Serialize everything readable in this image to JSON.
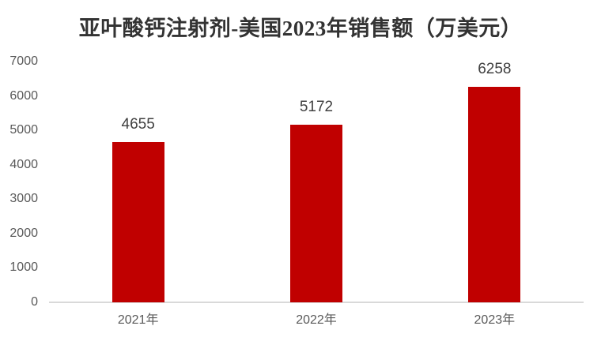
{
  "title": "亚叶酸钙注射剂-美国2023年销售额（万美元）",
  "colors": {
    "background": "#FFFFFF",
    "bar": "#C00000",
    "axis_line": "#D9D9D9",
    "tick_label": "#595959",
    "data_label": "#404040",
    "title": "#333333"
  },
  "chart_data": {
    "type": "bar",
    "title": "亚叶酸钙注射剂-美国2023年销售额（万美元）",
    "categories": [
      "2021年",
      "2022年",
      "2023年"
    ],
    "values": [
      4655,
      5172,
      6258
    ],
    "data_labels": [
      "4655",
      "5172",
      "6258"
    ],
    "xlabel": "",
    "ylabel": "",
    "ylim": [
      0,
      7000
    ],
    "yticks": [
      0,
      1000,
      2000,
      3000,
      4000,
      5000,
      6000,
      7000
    ],
    "grid": false,
    "legend": "none",
    "bar_color": "#C00000"
  }
}
